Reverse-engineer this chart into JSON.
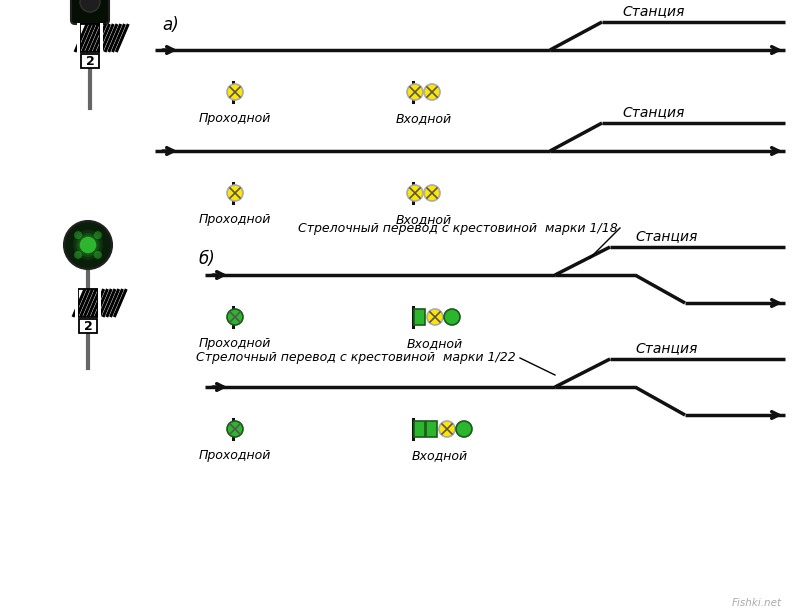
{
  "bg_color": "#ffffff",
  "title_a": "а)",
  "title_b": "б)",
  "text_prokhodnoy": "Проходной",
  "text_vkhodnoy": "Входной",
  "text_stantsiya": "Станция",
  "text_strelka_18": "Стрелочный перевод с крестовиной  марки 1/18",
  "text_strelka_22": "Стрелочный перевод с крестовиной  марки 1/22",
  "yellow_color": "#FFE600",
  "green_color": "#2DB52D",
  "signal_bg": "#0a1f0a",
  "signal_bg_a": "#050f05",
  "track_color": "#111111",
  "pole_color": "#666666",
  "watermark": "Fishki.net"
}
